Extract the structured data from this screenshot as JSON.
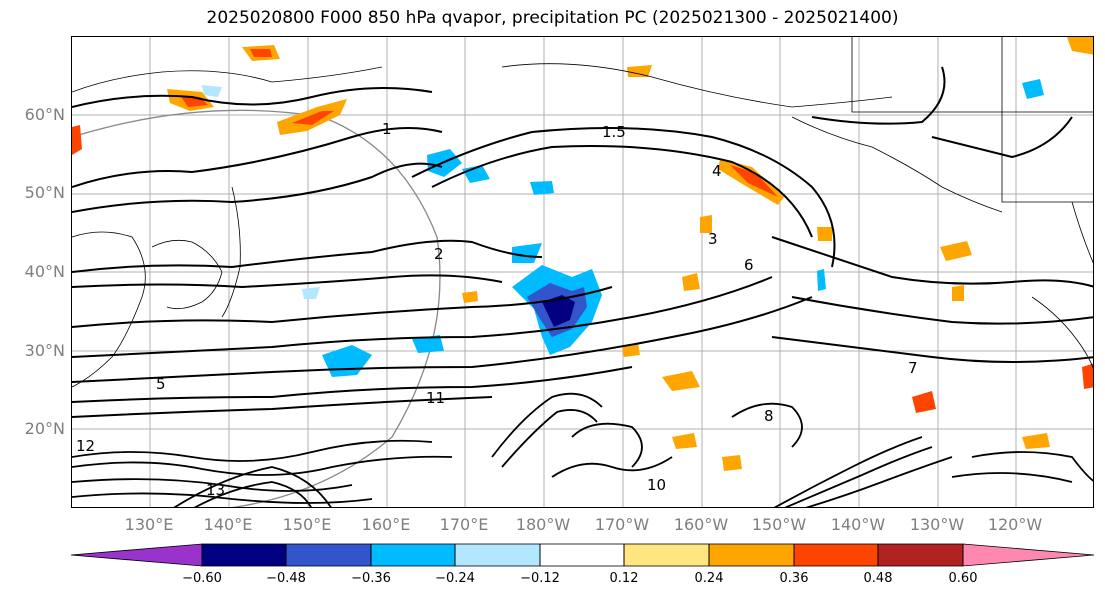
{
  "title": "2025020800 F000 850 hPa qvapor, precipitation PC (2025021300 - 2025021400)",
  "lat_labels": [
    "60°N",
    "50°N",
    "40°N",
    "30°N",
    "20°N"
  ],
  "lon_labels": [
    "130°E",
    "140°E",
    "150°E",
    "160°E",
    "170°E",
    "180°W",
    "170°W",
    "160°W",
    "150°W",
    "140°W",
    "130°W",
    "120°W"
  ],
  "colorbar": {
    "colors": [
      "#9933cc",
      "#000080",
      "#3355cc",
      "#00bbff",
      "#b3e6ff",
      "#ffffff",
      "#ffe680",
      "#ffa500",
      "#ff4400",
      "#b22222",
      "#ff88b0"
    ],
    "tick_labels": [
      "−0.60",
      "−0.48",
      "−0.36",
      "−0.24",
      "−0.12",
      "0.12",
      "0.24",
      "0.36",
      "0.48",
      "0.60"
    ]
  },
  "contour_labels": [
    "1",
    "1.5",
    "2",
    "3",
    "4",
    "5",
    "6",
    "7",
    "8",
    "10",
    "11",
    "12",
    "13"
  ],
  "colors": {
    "label_grey": "#7f7f7f",
    "gridline": "#b0b0b0",
    "contour": "#000000",
    "coast": "#000000"
  }
}
